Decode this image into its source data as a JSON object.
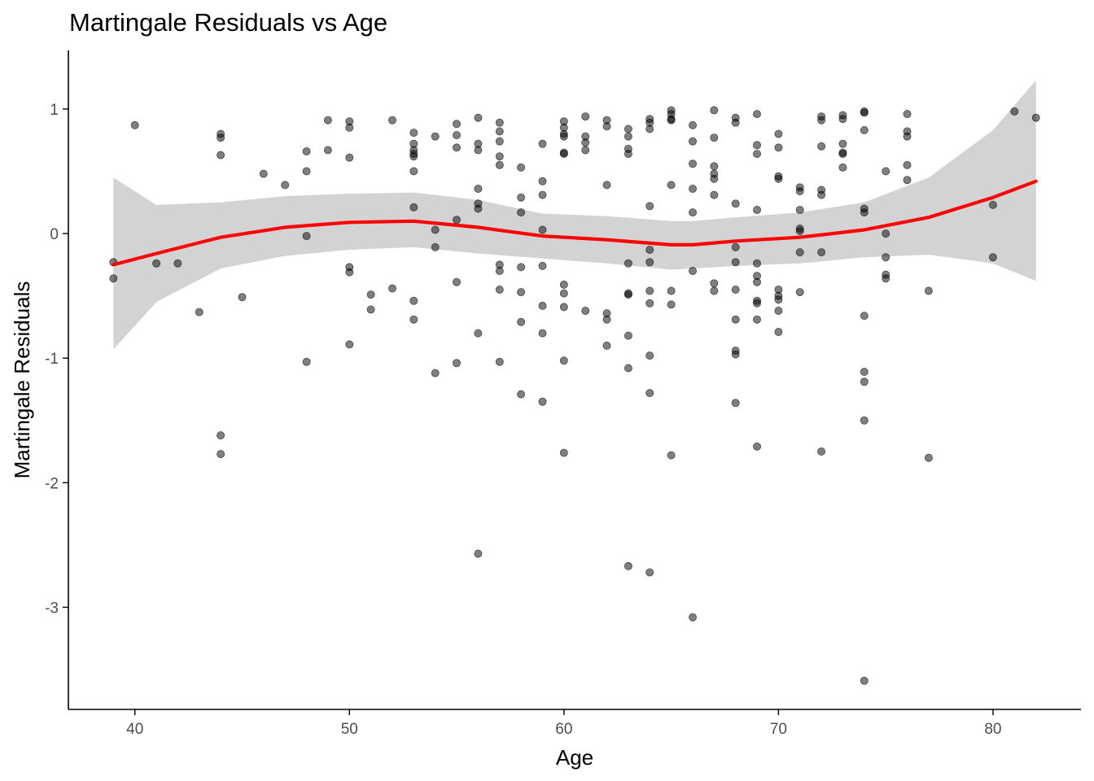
{
  "chart_data": {
    "type": "scatter",
    "title": "Martingale Residuals vs Age",
    "xlabel": "Age",
    "ylabel": "Martingale Residuals",
    "xlim": [
      36.9,
      84.1
    ],
    "ylim": [
      -3.82,
      1.47
    ],
    "x_ticks": [
      40,
      50,
      60,
      70,
      80
    ],
    "y_ticks": [
      1,
      0,
      -1,
      -2,
      -3
    ],
    "grid": false,
    "legend": "none",
    "colors": {
      "points": "#000000",
      "smooth_line": "#ff0000",
      "confidence_band": "#d3d3d3",
      "axis": "#000000",
      "tick_label": "#4d4d4d"
    },
    "points": [
      [
        39,
        -0.23
      ],
      [
        39,
        -0.36
      ],
      [
        40,
        0.87
      ],
      [
        41,
        -0.24
      ],
      [
        42,
        -0.24
      ],
      [
        43,
        -0.63
      ],
      [
        44,
        0.8
      ],
      [
        44,
        0.77
      ],
      [
        44,
        0.63
      ],
      [
        44,
        -1.62
      ],
      [
        44,
        -1.77
      ],
      [
        45,
        -0.51
      ],
      [
        46,
        0.48
      ],
      [
        47,
        0.39
      ],
      [
        48,
        0.66
      ],
      [
        48,
        0.5
      ],
      [
        48,
        -0.02
      ],
      [
        48,
        -1.03
      ],
      [
        49,
        0.91
      ],
      [
        49,
        0.67
      ],
      [
        50,
        0.9
      ],
      [
        50,
        0.85
      ],
      [
        50,
        0.61
      ],
      [
        50,
        -0.27
      ],
      [
        50,
        -0.31
      ],
      [
        50,
        -0.89
      ],
      [
        51,
        -0.49
      ],
      [
        51,
        -0.61
      ],
      [
        52,
        0.91
      ],
      [
        52,
        -0.44
      ],
      [
        53,
        0.81
      ],
      [
        53,
        0.72
      ],
      [
        53,
        0.67
      ],
      [
        53,
        0.64
      ],
      [
        53,
        0.62
      ],
      [
        53,
        0.5
      ],
      [
        53,
        0.21
      ],
      [
        53,
        -0.54
      ],
      [
        53,
        -0.69
      ],
      [
        54,
        0.78
      ],
      [
        54,
        0.03
      ],
      [
        54,
        -0.11
      ],
      [
        54,
        -1.12
      ],
      [
        55,
        0.88
      ],
      [
        55,
        0.79
      ],
      [
        55,
        0.69
      ],
      [
        55,
        0.11
      ],
      [
        55,
        -0.39
      ],
      [
        55,
        -1.04
      ],
      [
        56,
        0.93
      ],
      [
        56,
        0.72
      ],
      [
        56,
        0.67
      ],
      [
        56,
        0.36
      ],
      [
        56,
        0.24
      ],
      [
        56,
        0.2
      ],
      [
        56,
        -0.8
      ],
      [
        56,
        -2.57
      ],
      [
        57,
        0.89
      ],
      [
        57,
        0.82
      ],
      [
        57,
        0.74
      ],
      [
        57,
        0.62
      ],
      [
        57,
        0.55
      ],
      [
        57,
        -0.25
      ],
      [
        57,
        -0.3
      ],
      [
        57,
        -0.45
      ],
      [
        57,
        -1.03
      ],
      [
        58,
        0.53
      ],
      [
        58,
        0.29
      ],
      [
        58,
        0.17
      ],
      [
        58,
        -0.27
      ],
      [
        58,
        -0.47
      ],
      [
        58,
        -0.71
      ],
      [
        58,
        -1.29
      ],
      [
        59,
        0.72
      ],
      [
        59,
        0.42
      ],
      [
        59,
        0.31
      ],
      [
        59,
        0.03
      ],
      [
        59,
        -0.26
      ],
      [
        59,
        -0.58
      ],
      [
        59,
        -0.8
      ],
      [
        59,
        -1.35
      ],
      [
        60,
        0.9
      ],
      [
        60,
        0.85
      ],
      [
        60,
        0.8
      ],
      [
        60,
        0.78
      ],
      [
        60,
        0.65
      ],
      [
        60,
        0.64
      ],
      [
        60,
        -0.41
      ],
      [
        60,
        -0.48
      ],
      [
        60,
        -0.59
      ],
      [
        60,
        -1.02
      ],
      [
        60,
        -1.76
      ],
      [
        61,
        0.94
      ],
      [
        61,
        0.78
      ],
      [
        61,
        0.73
      ],
      [
        61,
        0.67
      ],
      [
        61,
        -0.62
      ],
      [
        62,
        0.91
      ],
      [
        62,
        0.86
      ],
      [
        62,
        0.39
      ],
      [
        62,
        -0.64
      ],
      [
        62,
        -0.69
      ],
      [
        62,
        -0.9
      ],
      [
        63,
        0.84
      ],
      [
        63,
        0.78
      ],
      [
        63,
        0.68
      ],
      [
        63,
        0.64
      ],
      [
        63,
        -0.24
      ],
      [
        63,
        -0.48
      ],
      [
        63,
        -0.49
      ],
      [
        63,
        -0.82
      ],
      [
        63,
        -1.08
      ],
      [
        63,
        -2.67
      ],
      [
        64,
        0.92
      ],
      [
        64,
        0.89
      ],
      [
        64,
        0.84
      ],
      [
        64,
        0.22
      ],
      [
        64,
        -0.13
      ],
      [
        64,
        -0.23
      ],
      [
        64,
        -0.46
      ],
      [
        64,
        -0.56
      ],
      [
        64,
        -0.98
      ],
      [
        64,
        -1.28
      ],
      [
        64,
        -2.72
      ],
      [
        65,
        0.99
      ],
      [
        65,
        0.96
      ],
      [
        65,
        0.92
      ],
      [
        65,
        0.91
      ],
      [
        65,
        0.39
      ],
      [
        65,
        -0.46
      ],
      [
        65,
        -0.57
      ],
      [
        65,
        -1.78
      ],
      [
        66,
        0.87
      ],
      [
        66,
        0.74
      ],
      [
        66,
        0.56
      ],
      [
        66,
        0.36
      ],
      [
        66,
        0.17
      ],
      [
        66,
        -0.3
      ],
      [
        66,
        -3.08
      ],
      [
        67,
        0.99
      ],
      [
        67,
        0.77
      ],
      [
        67,
        0.54
      ],
      [
        67,
        0.48
      ],
      [
        67,
        0.44
      ],
      [
        67,
        0.31
      ],
      [
        67,
        -0.4
      ],
      [
        67,
        -0.46
      ],
      [
        68,
        0.93
      ],
      [
        68,
        0.89
      ],
      [
        68,
        0.24
      ],
      [
        68,
        -0.11
      ],
      [
        68,
        -0.23
      ],
      [
        68,
        -0.45
      ],
      [
        68,
        -0.69
      ],
      [
        68,
        -0.94
      ],
      [
        68,
        -0.97
      ],
      [
        68,
        -1.36
      ],
      [
        69,
        0.96
      ],
      [
        69,
        0.71
      ],
      [
        69,
        0.64
      ],
      [
        69,
        0.19
      ],
      [
        69,
        -0.24
      ],
      [
        69,
        -0.34
      ],
      [
        69,
        -0.39
      ],
      [
        69,
        -0.54
      ],
      [
        69,
        -0.56
      ],
      [
        69,
        -0.69
      ],
      [
        69,
        -1.71
      ],
      [
        70,
        0.8
      ],
      [
        70,
        0.69
      ],
      [
        70,
        0.46
      ],
      [
        70,
        0.44
      ],
      [
        70,
        -0.45
      ],
      [
        70,
        -0.5
      ],
      [
        70,
        -0.53
      ],
      [
        70,
        -0.62
      ],
      [
        70,
        -0.79
      ],
      [
        71,
        0.37
      ],
      [
        71,
        0.34
      ],
      [
        71,
        0.19
      ],
      [
        71,
        0.04
      ],
      [
        71,
        0.02
      ],
      [
        71,
        -0.15
      ],
      [
        71,
        -0.47
      ],
      [
        72,
        0.94
      ],
      [
        72,
        0.91
      ],
      [
        72,
        0.7
      ],
      [
        72,
        0.35
      ],
      [
        72,
        0.31
      ],
      [
        72,
        -0.15
      ],
      [
        72,
        -1.75
      ],
      [
        73,
        0.95
      ],
      [
        73,
        0.92
      ],
      [
        73,
        0.72
      ],
      [
        73,
        0.65
      ],
      [
        73,
        0.64
      ],
      [
        73,
        0.53
      ],
      [
        74,
        0.98
      ],
      [
        74,
        0.97
      ],
      [
        74,
        0.83
      ],
      [
        74,
        0.2
      ],
      [
        74,
        0.17
      ],
      [
        74,
        -0.66
      ],
      [
        74,
        -1.11
      ],
      [
        74,
        -1.19
      ],
      [
        74,
        -1.5
      ],
      [
        74,
        -3.59
      ],
      [
        75,
        0.5
      ],
      [
        75,
        0.0
      ],
      [
        75,
        -0.19
      ],
      [
        75,
        -0.33
      ],
      [
        75,
        -0.36
      ],
      [
        76,
        0.96
      ],
      [
        76,
        0.82
      ],
      [
        76,
        0.78
      ],
      [
        76,
        0.55
      ],
      [
        76,
        0.43
      ],
      [
        77,
        -0.46
      ],
      [
        77,
        -1.8
      ],
      [
        80,
        0.23
      ],
      [
        80,
        -0.19
      ],
      [
        81,
        0.98
      ],
      [
        82,
        0.93
      ]
    ],
    "smooth": {
      "x": [
        39,
        41,
        44,
        47,
        50,
        53,
        56,
        59,
        62,
        65,
        66,
        68,
        71,
        74,
        77,
        80,
        82
      ],
      "y": [
        -0.25,
        -0.16,
        -0.03,
        0.05,
        0.09,
        0.1,
        0.05,
        -0.02,
        -0.05,
        -0.09,
        -0.09,
        -0.06,
        -0.03,
        0.03,
        0.13,
        0.29,
        0.42
      ],
      "lower": [
        -0.93,
        -0.55,
        -0.28,
        -0.18,
        -0.13,
        -0.11,
        -0.16,
        -0.2,
        -0.24,
        -0.29,
        -0.28,
        -0.26,
        -0.24,
        -0.19,
        -0.17,
        -0.24,
        -0.38
      ],
      "upper": [
        0.45,
        0.23,
        0.25,
        0.3,
        0.32,
        0.33,
        0.27,
        0.16,
        0.14,
        0.1,
        0.1,
        0.13,
        0.17,
        0.25,
        0.45,
        0.83,
        1.23
      ]
    }
  }
}
